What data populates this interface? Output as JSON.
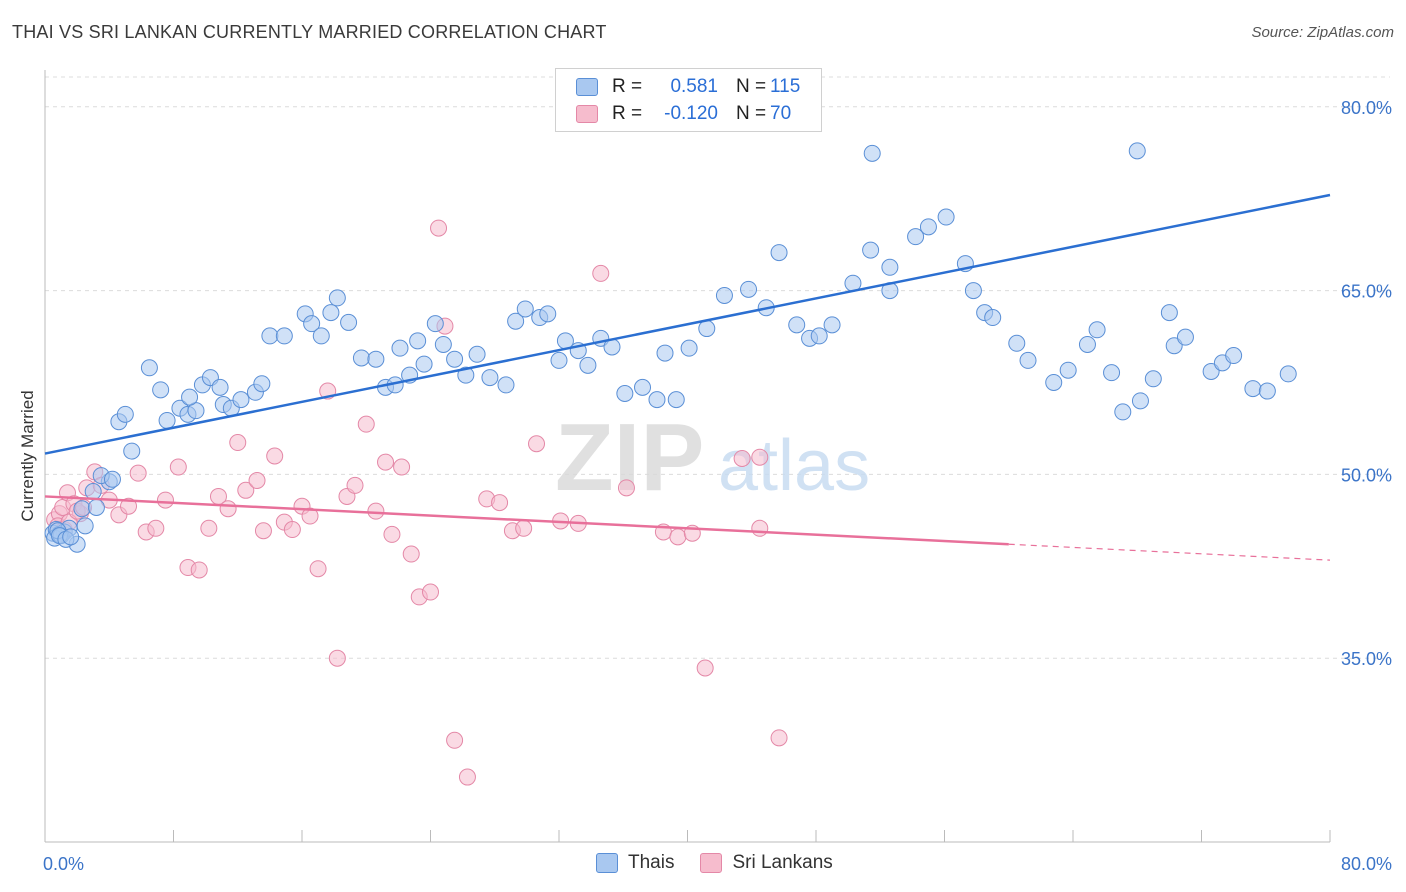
{
  "header": {
    "title": "THAI VS SRI LANKAN CURRENTLY MARRIED CORRELATION CHART",
    "source": "Source: ZipAtlas.com"
  },
  "legend": {
    "series1": {
      "r_label": "R =",
      "r_value": "0.581",
      "n_label": "N =",
      "n_value": "115"
    },
    "series2": {
      "r_label": "R =",
      "r_value": "-0.120",
      "n_label": "N =",
      "n_value": "70"
    }
  },
  "bottom_legend": {
    "series1": "Thais",
    "series2": "Sri Lankans"
  },
  "colors": {
    "blue_fill": "#a9c8f0",
    "blue_stroke": "#5a8fd6",
    "blue_line": "#2b6fd1",
    "pink_fill": "#f6bccd",
    "pink_stroke": "#e488a7",
    "pink_line": "#e8709a",
    "tick_label": "#3b74c8",
    "grid": "#dcdcdc"
  },
  "chart_data": {
    "type": "scatter",
    "title": "THAI VS SRI LANKAN CURRENTLY MARRIED CORRELATION CHART",
    "xlabel": "",
    "ylabel": "Currently Married",
    "xlim": [
      0,
      80
    ],
    "ylim": [
      20,
      83
    ],
    "x_tick_labels": [
      "0.0%",
      "80.0%"
    ],
    "y_ticks": [
      35,
      50,
      65,
      80
    ],
    "y_tick_labels": [
      "35.0%",
      "50.0%",
      "65.0%",
      "80.0%"
    ],
    "watermark": {
      "zip": "ZIP",
      "atlas": "atlas"
    },
    "series": [
      {
        "name": "Thais",
        "r": 0.581,
        "n": 115,
        "trend": {
          "x": [
            0,
            80
          ],
          "y": [
            51.7,
            72.8
          ]
        },
        "points": [
          [
            0.5,
            45.2
          ],
          [
            0.7,
            45.5
          ],
          [
            0.9,
            45.1
          ],
          [
            1.2,
            45.3
          ],
          [
            1.5,
            45.6
          ],
          [
            0.6,
            44.8
          ],
          [
            1.0,
            45.0
          ],
          [
            0.8,
            45.4
          ],
          [
            2.0,
            44.3
          ],
          [
            3.0,
            48.6
          ],
          [
            2.3,
            47.2
          ],
          [
            4.0,
            49.4
          ],
          [
            3.5,
            49.9
          ],
          [
            4.2,
            49.6
          ],
          [
            4.6,
            54.3
          ],
          [
            5.0,
            54.9
          ],
          [
            5.4,
            51.9
          ],
          [
            6.5,
            58.7
          ],
          [
            7.2,
            56.9
          ],
          [
            7.6,
            54.4
          ],
          [
            8.4,
            55.4
          ],
          [
            8.9,
            54.9
          ],
          [
            9.4,
            55.2
          ],
          [
            9.0,
            56.3
          ],
          [
            9.8,
            57.3
          ],
          [
            10.3,
            57.9
          ],
          [
            10.9,
            57.1
          ],
          [
            11.1,
            55.7
          ],
          [
            11.6,
            55.4
          ],
          [
            12.2,
            56.1
          ],
          [
            13.1,
            56.7
          ],
          [
            13.5,
            57.4
          ],
          [
            14.0,
            61.3
          ],
          [
            14.9,
            61.3
          ],
          [
            16.2,
            63.1
          ],
          [
            16.6,
            62.3
          ],
          [
            17.2,
            61.3
          ],
          [
            17.8,
            63.2
          ],
          [
            18.2,
            64.4
          ],
          [
            18.9,
            62.4
          ],
          [
            19.7,
            59.5
          ],
          [
            20.6,
            59.4
          ],
          [
            21.2,
            57.1
          ],
          [
            21.8,
            57.3
          ],
          [
            22.1,
            60.3
          ],
          [
            22.7,
            58.1
          ],
          [
            23.2,
            60.9
          ],
          [
            23.6,
            59.0
          ],
          [
            24.3,
            62.3
          ],
          [
            24.8,
            60.6
          ],
          [
            25.5,
            59.4
          ],
          [
            26.2,
            58.1
          ],
          [
            26.9,
            59.8
          ],
          [
            27.7,
            57.9
          ],
          [
            28.7,
            57.3
          ],
          [
            29.3,
            62.5
          ],
          [
            29.9,
            63.5
          ],
          [
            30.8,
            62.8
          ],
          [
            31.3,
            63.1
          ],
          [
            32.0,
            59.3
          ],
          [
            32.4,
            60.9
          ],
          [
            33.2,
            60.1
          ],
          [
            33.8,
            58.9
          ],
          [
            34.6,
            61.1
          ],
          [
            35.3,
            60.4
          ],
          [
            36.1,
            56.6
          ],
          [
            37.2,
            57.1
          ],
          [
            38.1,
            56.1
          ],
          [
            38.6,
            59.9
          ],
          [
            39.3,
            56.1
          ],
          [
            40.1,
            60.3
          ],
          [
            41.2,
            61.9
          ],
          [
            42.3,
            64.6
          ],
          [
            43.8,
            65.1
          ],
          [
            44.9,
            63.6
          ],
          [
            45.7,
            68.1
          ],
          [
            46.8,
            62.2
          ],
          [
            47.6,
            61.1
          ],
          [
            48.2,
            61.3
          ],
          [
            49.0,
            62.2
          ],
          [
            50.3,
            65.6
          ],
          [
            51.4,
            68.3
          ],
          [
            52.6,
            66.9
          ],
          [
            54.2,
            69.4
          ],
          [
            55.0,
            70.2
          ],
          [
            56.1,
            71.0
          ],
          [
            57.3,
            67.2
          ],
          [
            58.5,
            63.2
          ],
          [
            59.0,
            62.8
          ],
          [
            60.5,
            60.7
          ],
          [
            61.2,
            59.3
          ],
          [
            62.8,
            57.5
          ],
          [
            63.7,
            58.5
          ],
          [
            64.9,
            60.6
          ],
          [
            65.5,
            61.8
          ],
          [
            66.4,
            58.3
          ],
          [
            67.1,
            55.1
          ],
          [
            68.2,
            56.0
          ],
          [
            69.0,
            57.8
          ],
          [
            70.3,
            60.5
          ],
          [
            71.0,
            61.2
          ],
          [
            72.6,
            58.4
          ],
          [
            73.3,
            59.1
          ],
          [
            74.0,
            59.7
          ],
          [
            75.2,
            57.0
          ],
          [
            76.1,
            56.8
          ],
          [
            77.4,
            58.2
          ],
          [
            0.9,
            45.0
          ],
          [
            1.3,
            44.7
          ],
          [
            1.6,
            44.9
          ],
          [
            2.5,
            45.8
          ],
          [
            3.2,
            47.3
          ],
          [
            51.5,
            76.2
          ],
          [
            68.0,
            76.4
          ],
          [
            70.0,
            63.2
          ],
          [
            57.8,
            65.0
          ],
          [
            52.6,
            65.0
          ]
        ]
      },
      {
        "name": "Sri Lankans",
        "r": -0.12,
        "n": 70,
        "trend": {
          "x": [
            0,
            60
          ],
          "y": [
            48.2,
            44.3
          ]
        },
        "trend_dashed": {
          "x": [
            60,
            80
          ],
          "y": [
            44.3,
            43.0
          ]
        },
        "points": [
          [
            0.6,
            46.3
          ],
          [
            0.9,
            46.8
          ],
          [
            1.1,
            47.3
          ],
          [
            1.4,
            48.5
          ],
          [
            1.8,
            47.6
          ],
          [
            2.2,
            46.8
          ],
          [
            2.6,
            48.9
          ],
          [
            3.1,
            50.2
          ],
          [
            3.5,
            49.1
          ],
          [
            4.0,
            47.9
          ],
          [
            4.6,
            46.7
          ],
          [
            5.2,
            47.4
          ],
          [
            5.8,
            50.1
          ],
          [
            6.3,
            45.3
          ],
          [
            6.9,
            45.6
          ],
          [
            7.5,
            47.9
          ],
          [
            8.3,
            50.6
          ],
          [
            8.9,
            42.4
          ],
          [
            9.6,
            42.2
          ],
          [
            10.2,
            45.6
          ],
          [
            10.8,
            48.2
          ],
          [
            11.4,
            47.2
          ],
          [
            12.0,
            52.6
          ],
          [
            12.5,
            48.7
          ],
          [
            13.2,
            49.5
          ],
          [
            13.6,
            45.4
          ],
          [
            14.3,
            51.5
          ],
          [
            14.9,
            46.1
          ],
          [
            15.4,
            45.5
          ],
          [
            16.0,
            47.4
          ],
          [
            16.5,
            46.6
          ],
          [
            17.0,
            42.3
          ],
          [
            17.6,
            56.8
          ],
          [
            18.2,
            35.0
          ],
          [
            18.8,
            48.2
          ],
          [
            19.3,
            49.1
          ],
          [
            20.0,
            54.1
          ],
          [
            20.6,
            47.0
          ],
          [
            21.2,
            51.0
          ],
          [
            21.6,
            45.1
          ],
          [
            22.2,
            50.6
          ],
          [
            22.8,
            43.5
          ],
          [
            23.3,
            40.0
          ],
          [
            24.0,
            40.4
          ],
          [
            24.5,
            70.1
          ],
          [
            24.9,
            62.1
          ],
          [
            25.5,
            28.3
          ],
          [
            26.3,
            25.3
          ],
          [
            27.5,
            48.0
          ],
          [
            28.3,
            47.7
          ],
          [
            29.1,
            45.4
          ],
          [
            29.8,
            45.6
          ],
          [
            30.6,
            52.5
          ],
          [
            32.1,
            46.2
          ],
          [
            33.2,
            46.0
          ],
          [
            34.6,
            66.4
          ],
          [
            36.2,
            48.9
          ],
          [
            38.5,
            45.3
          ],
          [
            39.4,
            44.9
          ],
          [
            40.3,
            45.2
          ],
          [
            41.1,
            34.2
          ],
          [
            43.4,
            51.3
          ],
          [
            44.5,
            45.6
          ],
          [
            45.7,
            28.5
          ],
          [
            0.8,
            45.8
          ],
          [
            1.2,
            45.5
          ],
          [
            1.5,
            46.1
          ],
          [
            2.0,
            47.0
          ],
          [
            2.4,
            47.3
          ],
          [
            44.5,
            51.4
          ]
        ]
      }
    ]
  }
}
